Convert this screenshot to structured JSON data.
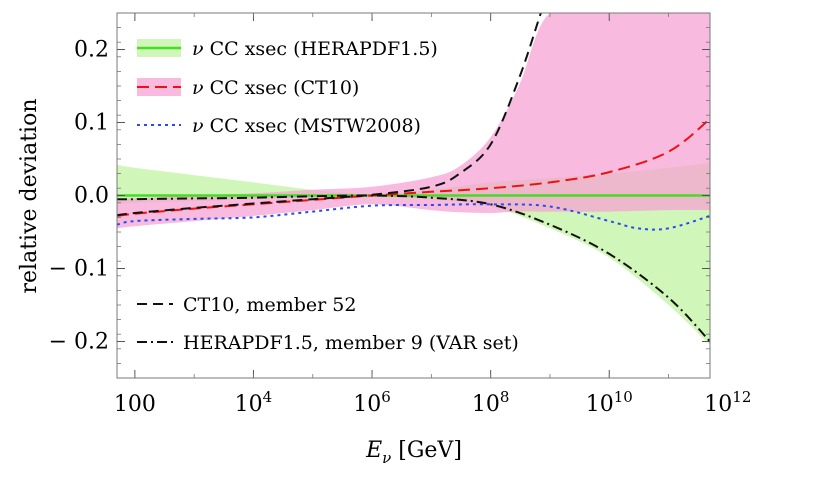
{
  "chart_data": {
    "type": "line",
    "x_scale": "log10",
    "xlabel_symbol": "E",
    "xlabel_subscript": "ν",
    "xlabel_unit": " [GeV]",
    "ylabel": "relative deviation",
    "xlim": [
      50,
      500000000000.0
    ],
    "ylim": [
      -0.25,
      0.25
    ],
    "x_ticks": [
      {
        "value": 100,
        "base": "100",
        "exp": ""
      },
      {
        "value": 10000.0,
        "base": "10",
        "exp": "4"
      },
      {
        "value": 1000000.0,
        "base": "10",
        "exp": "6"
      },
      {
        "value": 100000000.0,
        "base": "10",
        "exp": "8"
      },
      {
        "value": 10000000000.0,
        "base": "10",
        "exp": "10"
      },
      {
        "value": 1000000000000.0,
        "base": "10",
        "exp": "12"
      }
    ],
    "y_ticks": [
      {
        "value": 0.2,
        "label": "0.2"
      },
      {
        "value": 0.1,
        "label": "0.1"
      },
      {
        "value": 0.0,
        "label": "0.0"
      },
      {
        "value": -0.1,
        "label": "− 0.1"
      },
      {
        "value": -0.2,
        "label": "− 0.2"
      }
    ],
    "grid": false,
    "legend_top": {
      "placement": "top-left",
      "entries": [
        {
          "symbol": "ν",
          "text": " CC xsec (HERAPDF1.5)"
        },
        {
          "symbol": "ν",
          "text": " CC xsec (CT10)"
        },
        {
          "symbol": "ν",
          "text": " CC xsec (MSTW2008)"
        }
      ]
    },
    "legend_bottom": {
      "placement": "bottom-left",
      "entries": [
        {
          "text": "CT10, member 52"
        },
        {
          "text": "HERAPDF1.5, member 9 (VAR set)"
        }
      ]
    },
    "bands": [
      {
        "color": "#b3f08a",
        "opacity": 0.6,
        "x": [
          50,
          100.0,
          1000.0,
          10000.0,
          100000.0,
          1000000.0,
          10000000.0,
          100000000.0,
          1000000000.0,
          10000000000.0,
          100000000000.0,
          500000000000.0
        ],
        "upper": [
          0.042,
          0.038,
          0.028,
          0.018,
          0.008,
          0.002,
          0.008,
          0.018,
          0.024,
          0.03,
          0.038,
          0.045
        ],
        "lower": [
          -0.012,
          -0.01,
          -0.008,
          -0.005,
          -0.003,
          -0.001,
          -0.005,
          -0.015,
          -0.045,
          -0.085,
          -0.15,
          -0.205
        ]
      },
      {
        "color": "#f5a3d3",
        "opacity": 0.75,
        "x": [
          50,
          100.0,
          1000.0,
          10000.0,
          100000.0,
          1000000.0,
          10000000.0,
          30000000.0,
          100000000.0,
          300000000.0,
          1000000000.0,
          10000000000.0,
          100000000000.0,
          500000000000.0
        ],
        "upper": [
          -0.005,
          -0.004,
          0.0,
          0.003,
          0.008,
          0.012,
          0.025,
          0.04,
          0.08,
          0.15,
          0.25,
          0.25,
          0.25,
          0.25
        ],
        "lower": [
          -0.045,
          -0.042,
          -0.035,
          -0.028,
          -0.02,
          -0.012,
          -0.02,
          -0.023,
          -0.024,
          -0.022,
          -0.022,
          -0.022,
          -0.02,
          -0.02
        ]
      }
    ],
    "series": [
      {
        "color": "#44dd22",
        "dash": "",
        "width": 2.5,
        "x": [
          50,
          500000000000.0
        ],
        "y": [
          0.0,
          0.0
        ]
      },
      {
        "color": "#ee1111",
        "dash": "12,6",
        "width": 2,
        "x": [
          50,
          100.0,
          1000.0,
          10000.0,
          100000.0,
          1000000.0,
          10000000.0,
          100000000.0,
          1000000000.0,
          10000000000.0,
          100000000000.0,
          500000000000.0
        ],
        "y": [
          -0.028,
          -0.025,
          -0.018,
          -0.012,
          -0.006,
          0.0,
          0.005,
          0.01,
          0.018,
          0.032,
          0.06,
          0.105
        ]
      },
      {
        "color": "#2a4aee",
        "dash": "3,4",
        "width": 2,
        "x": [
          50,
          100.0,
          1000.0,
          10000.0,
          100000.0,
          1000000.0,
          10000000.0,
          100000000.0,
          1000000000.0,
          10000000000.0,
          30000000000.0,
          100000000000.0,
          500000000000.0
        ],
        "y": [
          -0.04,
          -0.035,
          -0.032,
          -0.03,
          -0.022,
          -0.014,
          -0.013,
          -0.012,
          -0.015,
          -0.035,
          -0.045,
          -0.045,
          -0.028
        ]
      },
      {
        "color": "#111111",
        "dash": "10,6",
        "width": 2,
        "x": [
          50,
          100.0,
          1000.0,
          10000.0,
          100000.0,
          1000000.0,
          10000000.0,
          30000000.0,
          100000000.0,
          300000000.0,
          700000000.0
        ],
        "y": [
          -0.027,
          -0.024,
          -0.017,
          -0.011,
          -0.005,
          0.001,
          0.012,
          0.03,
          0.07,
          0.16,
          0.25
        ]
      },
      {
        "color": "#111111",
        "dash": "10,4,2,4",
        "width": 2,
        "x": [
          50,
          100.0,
          1000.0,
          10000.0,
          100000.0,
          1000000.0,
          10000000.0,
          100000000.0,
          1000000000.0,
          10000000000.0,
          100000000000.0,
          500000000000.0
        ],
        "y": [
          -0.005,
          -0.005,
          -0.004,
          -0.003,
          -0.001,
          0.0,
          -0.003,
          -0.012,
          -0.04,
          -0.08,
          -0.14,
          -0.2
        ]
      }
    ]
  }
}
